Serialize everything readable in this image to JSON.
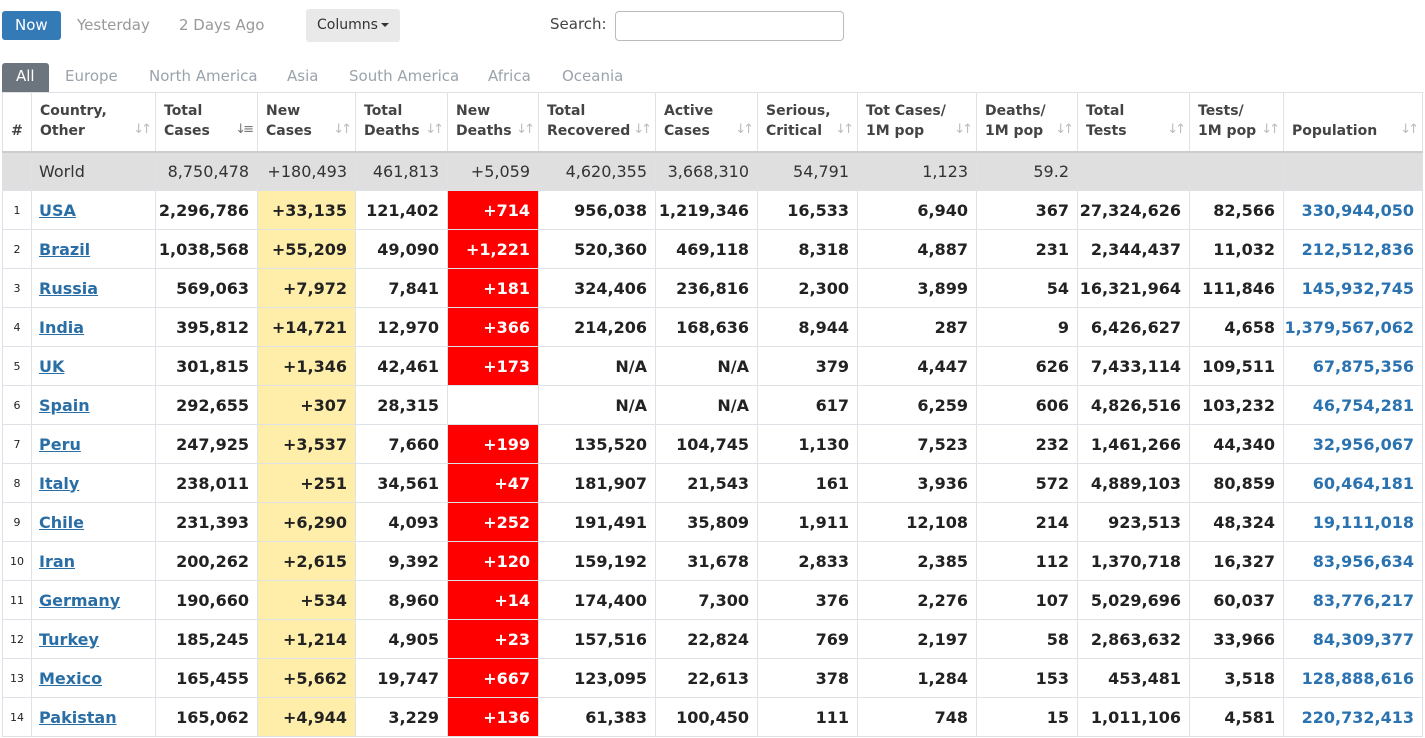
{
  "toolbar": {
    "now": "Now",
    "yesterday": "Yesterday",
    "two_days": "2 Days Ago",
    "columns": "Columns",
    "search_label": "Search:",
    "search_value": ""
  },
  "tabs": [
    "All",
    "Europe",
    "North America",
    "Asia",
    "South America",
    "Africa",
    "Oceania"
  ],
  "headers": {
    "idx": "#",
    "country_1": "Country,",
    "country_2": "Other",
    "total_cases_1": "Total",
    "total_cases_2": "Cases",
    "new_cases_1": "New",
    "new_cases_2": "Cases",
    "total_deaths_1": "Total",
    "total_deaths_2": "Deaths",
    "new_deaths_1": "New",
    "new_deaths_2": "Deaths",
    "total_recovered_1": "Total",
    "total_recovered_2": "Recovered",
    "active_1": "Active",
    "active_2": "Cases",
    "serious_1": "Serious,",
    "serious_2": "Critical",
    "totcases_pop_1": "Tot Cases/",
    "totcases_pop_2": "1M pop",
    "deaths_pop_1": "Deaths/",
    "deaths_pop_2": "1M pop",
    "tests_1": "Total",
    "tests_2": "Tests",
    "tests_pop_1": "Tests/",
    "tests_pop_2": "1M pop",
    "population": "Population"
  },
  "world": {
    "country": "World",
    "total_cases": "8,750,478",
    "new_cases": "+180,493",
    "total_deaths": "461,813",
    "new_deaths": "+5,059",
    "total_recovered": "4,620,355",
    "active": "3,668,310",
    "serious": "54,791",
    "totcases_pop": "1,123",
    "deaths_pop": "59.2",
    "tests": "",
    "tests_pop": "",
    "population": ""
  },
  "rows": [
    {
      "idx": "1",
      "country": "USA",
      "total_cases": "2,296,786",
      "new_cases": "+33,135",
      "total_deaths": "121,402",
      "new_deaths": "+714",
      "total_recovered": "956,038",
      "active": "1,219,346",
      "serious": "16,533",
      "totcases_pop": "6,940",
      "deaths_pop": "367",
      "tests": "27,324,626",
      "tests_pop": "82,566",
      "population": "330,944,050"
    },
    {
      "idx": "2",
      "country": "Brazil",
      "total_cases": "1,038,568",
      "new_cases": "+55,209",
      "total_deaths": "49,090",
      "new_deaths": "+1,221",
      "total_recovered": "520,360",
      "active": "469,118",
      "serious": "8,318",
      "totcases_pop": "4,887",
      "deaths_pop": "231",
      "tests": "2,344,437",
      "tests_pop": "11,032",
      "population": "212,512,836"
    },
    {
      "idx": "3",
      "country": "Russia",
      "total_cases": "569,063",
      "new_cases": "+7,972",
      "total_deaths": "7,841",
      "new_deaths": "+181",
      "total_recovered": "324,406",
      "active": "236,816",
      "serious": "2,300",
      "totcases_pop": "3,899",
      "deaths_pop": "54",
      "tests": "16,321,964",
      "tests_pop": "111,846",
      "population": "145,932,745"
    },
    {
      "idx": "4",
      "country": "India",
      "total_cases": "395,812",
      "new_cases": "+14,721",
      "total_deaths": "12,970",
      "new_deaths": "+366",
      "total_recovered": "214,206",
      "active": "168,636",
      "serious": "8,944",
      "totcases_pop": "287",
      "deaths_pop": "9",
      "tests": "6,426,627",
      "tests_pop": "4,658",
      "population": "1,379,567,062"
    },
    {
      "idx": "5",
      "country": "UK",
      "total_cases": "301,815",
      "new_cases": "+1,346",
      "total_deaths": "42,461",
      "new_deaths": "+173",
      "total_recovered": "N/A",
      "active": "N/A",
      "serious": "379",
      "totcases_pop": "4,447",
      "deaths_pop": "626",
      "tests": "7,433,114",
      "tests_pop": "109,511",
      "population": "67,875,356"
    },
    {
      "idx": "6",
      "country": "Spain",
      "total_cases": "292,655",
      "new_cases": "+307",
      "total_deaths": "28,315",
      "new_deaths": "",
      "total_recovered": "N/A",
      "active": "N/A",
      "serious": "617",
      "totcases_pop": "6,259",
      "deaths_pop": "606",
      "tests": "4,826,516",
      "tests_pop": "103,232",
      "population": "46,754,281"
    },
    {
      "idx": "7",
      "country": "Peru",
      "total_cases": "247,925",
      "new_cases": "+3,537",
      "total_deaths": "7,660",
      "new_deaths": "+199",
      "total_recovered": "135,520",
      "active": "104,745",
      "serious": "1,130",
      "totcases_pop": "7,523",
      "deaths_pop": "232",
      "tests": "1,461,266",
      "tests_pop": "44,340",
      "population": "32,956,067"
    },
    {
      "idx": "8",
      "country": "Italy",
      "total_cases": "238,011",
      "new_cases": "+251",
      "total_deaths": "34,561",
      "new_deaths": "+47",
      "total_recovered": "181,907",
      "active": "21,543",
      "serious": "161",
      "totcases_pop": "3,936",
      "deaths_pop": "572",
      "tests": "4,889,103",
      "tests_pop": "80,859",
      "population": "60,464,181"
    },
    {
      "idx": "9",
      "country": "Chile",
      "total_cases": "231,393",
      "new_cases": "+6,290",
      "total_deaths": "4,093",
      "new_deaths": "+252",
      "total_recovered": "191,491",
      "active": "35,809",
      "serious": "1,911",
      "totcases_pop": "12,108",
      "deaths_pop": "214",
      "tests": "923,513",
      "tests_pop": "48,324",
      "population": "19,111,018"
    },
    {
      "idx": "10",
      "country": "Iran",
      "total_cases": "200,262",
      "new_cases": "+2,615",
      "total_deaths": "9,392",
      "new_deaths": "+120",
      "total_recovered": "159,192",
      "active": "31,678",
      "serious": "2,833",
      "totcases_pop": "2,385",
      "deaths_pop": "112",
      "tests": "1,370,718",
      "tests_pop": "16,327",
      "population": "83,956,634"
    },
    {
      "idx": "11",
      "country": "Germany",
      "total_cases": "190,660",
      "new_cases": "+534",
      "total_deaths": "8,960",
      "new_deaths": "+14",
      "total_recovered": "174,400",
      "active": "7,300",
      "serious": "376",
      "totcases_pop": "2,276",
      "deaths_pop": "107",
      "tests": "5,029,696",
      "tests_pop": "60,037",
      "population": "83,776,217"
    },
    {
      "idx": "12",
      "country": "Turkey",
      "total_cases": "185,245",
      "new_cases": "+1,214",
      "total_deaths": "4,905",
      "new_deaths": "+23",
      "total_recovered": "157,516",
      "active": "22,824",
      "serious": "769",
      "totcases_pop": "2,197",
      "deaths_pop": "58",
      "tests": "2,863,632",
      "tests_pop": "33,966",
      "population": "84,309,377"
    },
    {
      "idx": "13",
      "country": "Mexico",
      "total_cases": "165,455",
      "new_cases": "+5,662",
      "total_deaths": "19,747",
      "new_deaths": "+667",
      "total_recovered": "123,095",
      "active": "22,613",
      "serious": "378",
      "totcases_pop": "1,284",
      "deaths_pop": "153",
      "tests": "453,481",
      "tests_pop": "3,518",
      "population": "128,888,616"
    },
    {
      "idx": "14",
      "country": "Pakistan",
      "total_cases": "165,062",
      "new_cases": "+4,944",
      "total_deaths": "3,229",
      "new_deaths": "+136",
      "total_recovered": "61,383",
      "active": "100,450",
      "serious": "111",
      "totcases_pop": "748",
      "deaths_pop": "15",
      "tests": "1,011,106",
      "tests_pop": "4,581",
      "population": "220,732,413"
    }
  ]
}
